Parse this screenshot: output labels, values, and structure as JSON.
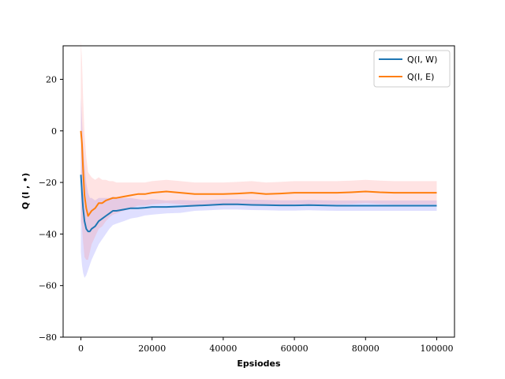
{
  "chart_data": {
    "type": "line",
    "title": "",
    "xlabel": "Epsiodes",
    "ylabel": "Q (I , •)",
    "xlim": [
      -5000,
      105000
    ],
    "ylim": [
      -80,
      33
    ],
    "x_ticks": [
      0,
      20000,
      40000,
      60000,
      80000,
      100000
    ],
    "x_tick_labels": [
      "0",
      "20000",
      "40000",
      "60000",
      "80000",
      "100000"
    ],
    "y_ticks": [
      -80,
      -60,
      -40,
      -20,
      0,
      20
    ],
    "y_tick_labels": [
      "−80",
      "−60",
      "−40",
      "−20",
      "0",
      "20"
    ],
    "grid": false,
    "legend_position": "top-right",
    "series": [
      {
        "name": "Q(I, W)",
        "color": "#1f77b4",
        "band_color": "#6f6fff",
        "x": [
          0,
          300,
          600,
          1000,
          1500,
          2000,
          2500,
          3000,
          4000,
          5000,
          6000,
          7000,
          8000,
          9000,
          10000,
          12000,
          14000,
          16000,
          18000,
          20000,
          24000,
          28000,
          32000,
          36000,
          40000,
          44000,
          48000,
          52000,
          56000,
          60000,
          64000,
          68000,
          72000,
          76000,
          80000,
          84000,
          88000,
          92000,
          96000,
          100000
        ],
        "values": [
          -17,
          -24,
          -30,
          -35,
          -38,
          -39,
          -39,
          -38,
          -37,
          -35,
          -34,
          -33,
          -32,
          -31,
          -31,
          -30.5,
          -30,
          -30,
          -29.8,
          -29.5,
          -29.5,
          -29.3,
          -29,
          -28.8,
          -28.5,
          -28.5,
          -28.7,
          -28.8,
          -28.9,
          -28.9,
          -28.8,
          -28.9,
          -29,
          -29,
          -29,
          -29,
          -29,
          -29,
          -29,
          -29
        ],
        "band_width": [
          30,
          28,
          25,
          22,
          18,
          15,
          13,
          12,
          10,
          9,
          8,
          7,
          6,
          5.5,
          5,
          4.5,
          4,
          3.5,
          3,
          3,
          2.5,
          2.5,
          2,
          2,
          2,
          2,
          2,
          2,
          2,
          2,
          2,
          2,
          2,
          2,
          2,
          2,
          2,
          2,
          2,
          2
        ]
      },
      {
        "name": "Q(I, E)",
        "color": "#ff7f0e",
        "band_color": "#ff7f7f",
        "x": [
          0,
          300,
          600,
          1000,
          1500,
          2000,
          2500,
          3000,
          4000,
          5000,
          6000,
          7000,
          8000,
          9000,
          10000,
          12000,
          14000,
          16000,
          18000,
          20000,
          24000,
          28000,
          32000,
          36000,
          40000,
          44000,
          48000,
          52000,
          56000,
          60000,
          64000,
          68000,
          72000,
          76000,
          80000,
          84000,
          88000,
          92000,
          96000,
          100000
        ],
        "values": [
          0,
          -5,
          -15,
          -25,
          -30,
          -33,
          -32,
          -31,
          -30,
          -28,
          -28,
          -27,
          -26.5,
          -26,
          -26,
          -25.5,
          -25,
          -24.5,
          -24.5,
          -24,
          -23.5,
          -24,
          -24.5,
          -24.5,
          -24.5,
          -24.3,
          -24,
          -24.5,
          -24.3,
          -24,
          -24,
          -24,
          -24,
          -23.8,
          -23.5,
          -23.8,
          -24,
          -24,
          -24,
          -24
        ],
        "band_width": [
          35,
          32,
          28,
          24,
          20,
          17,
          15,
          13,
          11,
          10,
          9,
          8,
          7,
          6.5,
          6,
          5.5,
          5,
          4.5,
          4.5,
          4.5,
          4.5,
          4.5,
          4.5,
          4.5,
          4.5,
          4.5,
          4.5,
          4.5,
          4.5,
          4.5,
          4.5,
          4.5,
          4.5,
          4.5,
          4.5,
          4.5,
          4.5,
          4.5,
          4.5,
          4.5
        ]
      }
    ]
  }
}
